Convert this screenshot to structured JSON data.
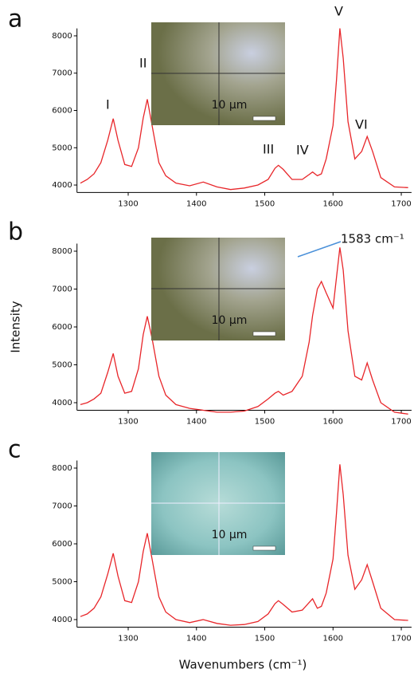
{
  "chart_data": [
    {
      "type": "line",
      "panel_label": "a",
      "inset_label": "10 µm",
      "color": "#e8262a",
      "annotations": [
        "I",
        "II",
        "III",
        "IV",
        "V",
        "VI"
      ],
      "x": [
        1230,
        1240,
        1250,
        1260,
        1270,
        1278,
        1285,
        1295,
        1305,
        1315,
        1322,
        1328,
        1335,
        1345,
        1355,
        1370,
        1390,
        1410,
        1430,
        1450,
        1470,
        1490,
        1505,
        1515,
        1520,
        1527,
        1540,
        1555,
        1565,
        1570,
        1577,
        1583,
        1590,
        1600,
        1605,
        1610,
        1615,
        1622,
        1632,
        1642,
        1650,
        1658,
        1670,
        1690,
        1710
      ],
      "values": [
        4050,
        4150,
        4300,
        4600,
        5200,
        5780,
        5200,
        4550,
        4500,
        5000,
        5800,
        6300,
        5600,
        4600,
        4250,
        4050,
        3980,
        4080,
        3950,
        3880,
        3920,
        4000,
        4150,
        4450,
        4530,
        4420,
        4150,
        4150,
        4280,
        4350,
        4250,
        4300,
        4700,
        5600,
        6800,
        8200,
        7400,
        5700,
        4700,
        4900,
        5300,
        4900,
        4200,
        3950,
        3930
      ],
      "xlim": [
        1225,
        1715
      ],
      "ylim": [
        3800,
        8200
      ],
      "xticks": [
        1300,
        1400,
        1500,
        1600,
        1700
      ],
      "yticks": [
        4000,
        5000,
        6000,
        7000,
        8000
      ]
    },
    {
      "type": "line",
      "panel_label": "b",
      "inset_label": "10 µm",
      "color": "#e8262a",
      "annotations": [
        "1583 cm⁻¹"
      ],
      "y_label": "Intensity",
      "x": [
        1230,
        1240,
        1250,
        1260,
        1270,
        1278,
        1285,
        1295,
        1305,
        1315,
        1322,
        1328,
        1335,
        1345,
        1355,
        1370,
        1390,
        1410,
        1430,
        1450,
        1470,
        1490,
        1505,
        1515,
        1520,
        1527,
        1540,
        1555,
        1565,
        1570,
        1577,
        1583,
        1590,
        1600,
        1605,
        1610,
        1615,
        1622,
        1632,
        1642,
        1650,
        1658,
        1670,
        1690,
        1710
      ],
      "values": [
        3950,
        4000,
        4100,
        4250,
        4800,
        5300,
        4700,
        4250,
        4300,
        4900,
        5800,
        6280,
        5700,
        4700,
        4200,
        3950,
        3850,
        3800,
        3750,
        3750,
        3780,
        3900,
        4100,
        4250,
        4300,
        4200,
        4300,
        4700,
        5600,
        6300,
        7000,
        7200,
        6900,
        6500,
        7300,
        8100,
        7500,
        5900,
        4700,
        4600,
        5050,
        4600,
        4000,
        3750,
        3700
      ],
      "xlim": [
        1225,
        1715
      ],
      "ylim": [
        3800,
        8200
      ],
      "xticks": [
        1300,
        1400,
        1500,
        1600,
        1700
      ],
      "yticks": [
        4000,
        5000,
        6000,
        7000,
        8000
      ]
    },
    {
      "type": "line",
      "panel_label": "c",
      "inset_label": "10 µm",
      "color": "#e8262a",
      "x_label": "Wavenumbers (cm⁻¹)",
      "x": [
        1230,
        1240,
        1250,
        1260,
        1270,
        1278,
        1285,
        1295,
        1305,
        1315,
        1322,
        1328,
        1335,
        1345,
        1355,
        1370,
        1390,
        1410,
        1430,
        1450,
        1470,
        1490,
        1505,
        1515,
        1520,
        1527,
        1540,
        1555,
        1565,
        1570,
        1577,
        1583,
        1590,
        1600,
        1605,
        1610,
        1615,
        1622,
        1632,
        1642,
        1650,
        1658,
        1670,
        1690,
        1710
      ],
      "values": [
        4080,
        4150,
        4300,
        4600,
        5200,
        5750,
        5150,
        4500,
        4450,
        5000,
        5800,
        6280,
        5600,
        4600,
        4200,
        4000,
        3920,
        4000,
        3900,
        3850,
        3870,
        3950,
        4150,
        4420,
        4500,
        4400,
        4200,
        4250,
        4450,
        4550,
        4300,
        4350,
        4700,
        5600,
        6800,
        8100,
        7300,
        5700,
        4800,
        5050,
        5450,
        5000,
        4300,
        4000,
        3980
      ],
      "xlim": [
        1225,
        1715
      ],
      "ylim": [
        3800,
        8200
      ],
      "xticks": [
        1300,
        1400,
        1500,
        1600,
        1700
      ],
      "yticks": [
        4000,
        5000,
        6000,
        7000,
        8000
      ]
    }
  ]
}
